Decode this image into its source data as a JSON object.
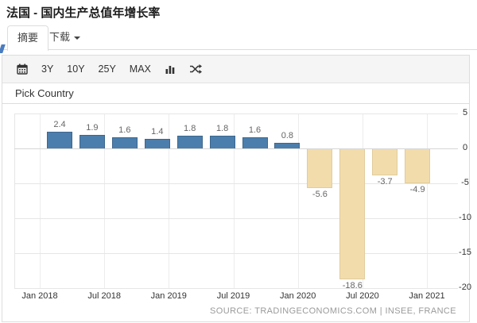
{
  "header": {
    "title": "法国 - 国内生产总值年增长率"
  },
  "tabs": [
    {
      "label": "摘要",
      "active": true
    },
    {
      "label": "下载",
      "has_caret": true
    }
  ],
  "toolbar": {
    "calendar_icon": "calendar-icon",
    "range_buttons": [
      "3Y",
      "10Y",
      "25Y",
      "MAX"
    ],
    "chart_type_icon": "bar-chart-icon",
    "compare_icon": "shuffle-icon"
  },
  "pick_country_label": "Pick Country",
  "chart_data": {
    "type": "bar",
    "title": "",
    "xlabel": "",
    "ylabel": "",
    "x_tick_labels": [
      "Jan 2018",
      "Jul 2018",
      "Jan 2019",
      "Jul 2019",
      "Jan 2020",
      "Jul 2020",
      "Jan 2021"
    ],
    "values": [
      2.4,
      1.9,
      1.6,
      1.4,
      1.8,
      1.8,
      1.6,
      0.8,
      -5.6,
      -18.6,
      -3.7,
      -4.9
    ],
    "bar_labels": [
      "2.4",
      "1.9",
      "1.6",
      "1.4",
      "1.8",
      "1.8",
      "1.6",
      "0.8",
      "-5.6",
      "-18.6",
      "-3.7",
      "-4.9"
    ],
    "yticks": [
      5,
      0,
      -5,
      -10,
      -15,
      -20
    ],
    "ylim": [
      -20,
      5
    ],
    "grid": true,
    "legend": "none",
    "positive_color": "#4b7eac",
    "negative_color": "#f2dcab"
  },
  "footer": {
    "source": "SOURCE: TRADINGECONOMICS.COM | INSEE, FRANCE"
  }
}
